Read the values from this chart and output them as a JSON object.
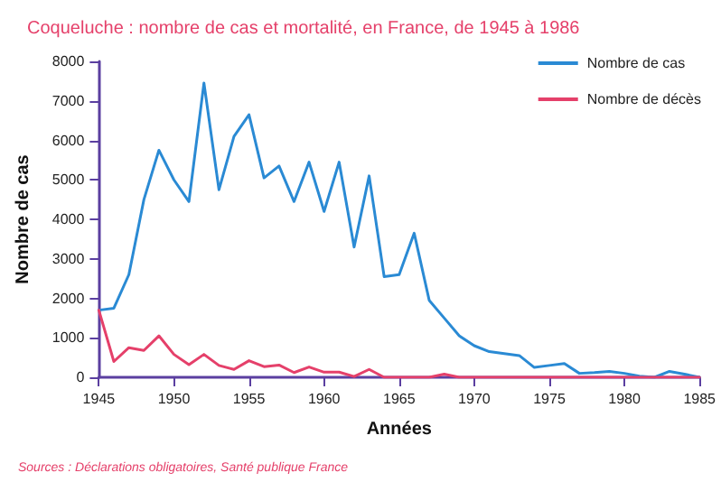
{
  "chart_data": {
    "type": "line",
    "title": "Coqueluche : nombre de cas et mortalité, en France, de 1945 à 1986",
    "xlabel": "Années",
    "ylabel": "Nombre de cas",
    "annotations": [
      "Sources : Déclarations obligatoires, Santé publique France"
    ],
    "x": [
      1945,
      1946,
      1947,
      1948,
      1949,
      1950,
      1951,
      1952,
      1953,
      1954,
      1955,
      1956,
      1957,
      1958,
      1959,
      1960,
      1961,
      1962,
      1963,
      1964,
      1965,
      1966,
      1967,
      1968,
      1969,
      1970,
      1971,
      1972,
      1973,
      1974,
      1975,
      1976,
      1977,
      1978,
      1979,
      1980,
      1981,
      1982,
      1983,
      1984,
      1985
    ],
    "series": [
      {
        "name": "Nombre de cas",
        "color": "#2a8ad4",
        "values": [
          1700,
          1750,
          2600,
          4500,
          5750,
          5000,
          4450,
          7450,
          4750,
          6100,
          6650,
          5050,
          5350,
          4450,
          5450,
          4200,
          5450,
          3300,
          5100,
          2550,
          2600,
          3650,
          1950,
          1500,
          1050,
          800,
          650,
          600,
          550,
          250,
          300,
          350,
          100,
          120,
          150,
          100,
          30,
          0,
          150,
          80,
          0
        ]
      },
      {
        "name": "Nombre de décès",
        "color": "#e5406a",
        "values": [
          1700,
          400,
          750,
          680,
          1050,
          580,
          320,
          580,
          300,
          200,
          420,
          270,
          310,
          120,
          260,
          130,
          130,
          20,
          200,
          0,
          0,
          0,
          0,
          80,
          0,
          0,
          0,
          0,
          0,
          0,
          0,
          0,
          0,
          0,
          0,
          0,
          0,
          0,
          0,
          0,
          0
        ]
      }
    ],
    "xlim": [
      1945,
      1985
    ],
    "xticks": [
      1945,
      1950,
      1955,
      1960,
      1965,
      1970,
      1975,
      1980,
      1985
    ],
    "ylim": [
      0,
      8000
    ],
    "yticks": [
      0,
      1000,
      2000,
      3000,
      4000,
      5000,
      6000,
      7000,
      8000
    ],
    "grid": false,
    "legend": "top right",
    "marker": "none",
    "line_style": "solid"
  }
}
